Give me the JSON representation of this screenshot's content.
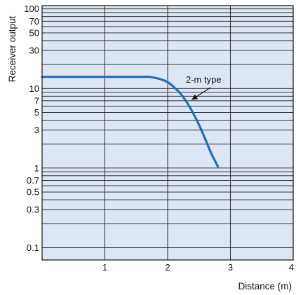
{
  "chart_data": {
    "type": "line",
    "xlabel": "Distance (m)",
    "ylabel": "Receiver output",
    "xlim": [
      0,
      4
    ],
    "ylim": [
      0.07,
      110
    ],
    "y_scale": "log",
    "grid": true,
    "x_ticks": [
      {
        "value": 1,
        "label": "1"
      },
      {
        "value": 2,
        "label": "2"
      },
      {
        "value": 3,
        "label": "3"
      },
      {
        "value": 4,
        "label": "4"
      }
    ],
    "y_ticks": [
      {
        "value": 0.1,
        "label": "0.1"
      },
      {
        "value": 0.3,
        "label": "0.3"
      },
      {
        "value": 0.5,
        "label": "0.5"
      },
      {
        "value": 0.7,
        "label": "0.7"
      },
      {
        "value": 1,
        "label": "1"
      },
      {
        "value": 3,
        "label": "3"
      },
      {
        "value": 5,
        "label": "5"
      },
      {
        "value": 7,
        "label": "7"
      },
      {
        "value": 10,
        "label": "10"
      },
      {
        "value": 30,
        "label": "30"
      },
      {
        "value": 50,
        "label": "50"
      },
      {
        "value": 70,
        "label": "70"
      },
      {
        "value": 100,
        "label": "100"
      }
    ],
    "y_gridlines": [
      0.1,
      0.2,
      0.3,
      0.4,
      0.5,
      0.6,
      0.7,
      0.8,
      0.9,
      1,
      2,
      3,
      4,
      5,
      6,
      7,
      8,
      9,
      10,
      20,
      30,
      40,
      50,
      60,
      70,
      80,
      90,
      100
    ],
    "series": [
      {
        "name": "2-m type",
        "color": "#1a6fbf",
        "x": [
          0,
          0.5,
          1.0,
          1.5,
          1.7,
          1.8,
          1.9,
          2.0,
          2.1,
          2.2,
          2.3,
          2.4,
          2.5,
          2.6,
          2.7,
          2.8
        ],
        "y": [
          14,
          14,
          14,
          14,
          14,
          13.6,
          13,
          12,
          10.4,
          8.7,
          6.8,
          5,
          3.5,
          2.3,
          1.5,
          1.05
        ]
      }
    ],
    "annotations": [
      {
        "text": "2-m type",
        "points_to": {
          "x": 2.35,
          "y": 6.8
        }
      }
    ],
    "colors": {
      "plot_background": "#dde6f4",
      "grid": "#1a1a1a",
      "line": "#1a6fbf"
    }
  }
}
